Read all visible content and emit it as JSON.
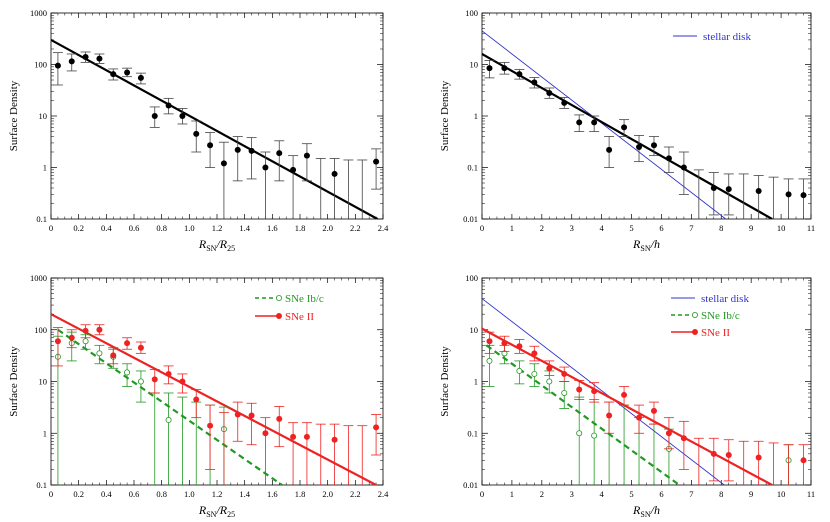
{
  "chart_data": [
    {
      "type": "scatter",
      "panel": "top-left",
      "title": "",
      "xlabel": {
        "main": "R",
        "sub1": "SN",
        "mid": "/R",
        "sub2": "25"
      },
      "ylabel": "Surface Density",
      "y_scale": "log",
      "xlim": [
        0,
        2.4
      ],
      "ylim": [
        0.1,
        1000
      ],
      "x_ticks": [
        "0",
        "0.2",
        "0.4",
        "0.6",
        "0.8",
        "1.0",
        "1.2",
        "1.4",
        "1.6",
        "1.8",
        "2.0",
        "2.2",
        "2.4"
      ],
      "x_tick_values": [
        0,
        0.2,
        0.4,
        0.6,
        0.8,
        1.0,
        1.2,
        1.4,
        1.6,
        1.8,
        2.0,
        2.2,
        2.4
      ],
      "y_ticks": [
        "0.1",
        "1",
        "10",
        "100",
        "1000"
      ],
      "y_tick_values": [
        0.1,
        1,
        10,
        100,
        1000
      ],
      "legend": [],
      "series": [
        {
          "color": "#000000",
          "marker": "filled-circle",
          "points": [
            [
              0.05,
              95,
              40,
              170
            ],
            [
              0.15,
              115,
              75,
              160
            ],
            [
              0.25,
              140,
              110,
              175
            ],
            [
              0.35,
              130,
              105,
              160
            ],
            [
              0.45,
              65,
              50,
              82
            ],
            [
              0.55,
              70,
              58,
              85
            ],
            [
              0.65,
              55,
              42,
              68
            ],
            [
              0.75,
              10,
              6,
              15
            ],
            [
              0.85,
              16,
              11,
              22
            ],
            [
              0.95,
              10,
              7,
              14
            ],
            [
              1.05,
              4.5,
              2,
              8
            ],
            [
              1.15,
              2.7,
              1,
              4.8
            ],
            [
              1.25,
              1.2,
              0.1,
              3.1
            ],
            [
              1.35,
              2.2,
              0.55,
              4
            ],
            [
              1.45,
              2.1,
              0.6,
              3.8
            ],
            [
              1.55,
              1,
              0.1,
              2
            ],
            [
              1.65,
              1.9,
              0.55,
              3.3
            ],
            [
              1.75,
              0.9,
              0.1,
              1.7
            ],
            [
              1.85,
              1.7,
              0.55,
              2.9
            ],
            [
              1.95,
              0,
              0.1,
              1.5
            ],
            [
              2.05,
              0.75,
              0.1,
              1.5
            ],
            [
              2.15,
              0,
              0.1,
              1.4
            ],
            [
              2.25,
              0,
              0.1,
              1.4
            ],
            [
              2.35,
              1.3,
              0.38,
              2.3
            ]
          ]
        }
      ],
      "lines": [
        {
          "color": "#000000",
          "width": 2.2,
          "dash": "",
          "from": [
            0,
            300
          ],
          "to": [
            2.36,
            0.1
          ]
        }
      ]
    },
    {
      "type": "scatter",
      "panel": "top-right",
      "title": "",
      "xlabel": {
        "main": "R",
        "sub1": "SN",
        "mid": "/h",
        "sub2": ""
      },
      "ylabel": "Surface Density",
      "y_scale": "log",
      "xlim": [
        0,
        11
      ],
      "ylim": [
        0.01,
        100
      ],
      "x_ticks": [
        "0",
        "1",
        "2",
        "3",
        "4",
        "5",
        "6",
        "7",
        "8",
        "9",
        "10",
        "11"
      ],
      "x_tick_values": [
        0,
        1,
        2,
        3,
        4,
        5,
        6,
        7,
        8,
        9,
        10,
        11
      ],
      "y_ticks": [
        "0.01",
        "0.1",
        "1",
        "10",
        "100"
      ],
      "y_tick_values": [
        0.01,
        0.1,
        1,
        10,
        100
      ],
      "legend": [
        {
          "label": "stellar disk",
          "color": "#3333cc",
          "style": "line"
        }
      ],
      "series": [
        {
          "color": "#000000",
          "marker": "filled-circle",
          "points": [
            [
              0.25,
              8.5,
              5.5,
              12
            ],
            [
              0.75,
              8.5,
              6.5,
              11
            ],
            [
              1.25,
              6.5,
              5.2,
              8
            ],
            [
              1.75,
              4.5,
              3.5,
              5.6
            ],
            [
              2.25,
              2.8,
              2.2,
              3.5
            ],
            [
              2.75,
              1.8,
              1.4,
              2.3
            ],
            [
              3.25,
              0.75,
              0.5,
              1.05
            ],
            [
              3.75,
              0.75,
              0.5,
              1.0
            ],
            [
              4.25,
              0.22,
              0.1,
              0.4
            ],
            [
              4.75,
              0.6,
              0.4,
              0.85
            ],
            [
              5.25,
              0.25,
              0.13,
              0.42
            ],
            [
              5.75,
              0.27,
              0.17,
              0.4
            ],
            [
              6.25,
              0.15,
              0.08,
              0.25
            ],
            [
              6.75,
              0.1,
              0.03,
              0.2
            ],
            [
              7.25,
              0,
              0.01,
              0.09
            ],
            [
              7.75,
              0.04,
              0.012,
              0.08
            ],
            [
              8.25,
              0.038,
              0.012,
              0.075
            ],
            [
              8.75,
              0,
              0.01,
              0.075
            ],
            [
              9.25,
              0.035,
              0.01,
              0.07
            ],
            [
              9.75,
              0,
              0.01,
              0.065
            ],
            [
              10.25,
              0.03,
              0.01,
              0.06
            ],
            [
              10.75,
              0.029,
              0.01,
              0.06
            ]
          ]
        }
      ],
      "lines": [
        {
          "color": "#3333cc",
          "width": 0.9,
          "dash": "",
          "from": [
            0,
            45
          ],
          "to": [
            8.15,
            0.01
          ]
        },
        {
          "color": "#000000",
          "width": 2.2,
          "dash": "",
          "from": [
            0,
            16
          ],
          "to": [
            9.7,
            0.01
          ]
        }
      ]
    },
    {
      "type": "scatter",
      "panel": "bottom-left",
      "title": "",
      "xlabel": {
        "main": "R",
        "sub1": "SN",
        "mid": "/R",
        "sub2": "25"
      },
      "ylabel": "Surface Density",
      "y_scale": "log",
      "xlim": [
        0,
        2.4
      ],
      "ylim": [
        0.1,
        1000
      ],
      "x_ticks": [
        "0",
        "0.2",
        "0.4",
        "0.6",
        "0.8",
        "1.0",
        "1.2",
        "1.4",
        "1.6",
        "1.8",
        "2.0",
        "2.2",
        "2.4"
      ],
      "x_tick_values": [
        0,
        0.2,
        0.4,
        0.6,
        0.8,
        1.0,
        1.2,
        1.4,
        1.6,
        1.8,
        2.0,
        2.2,
        2.4
      ],
      "y_ticks": [
        "0.1",
        "1",
        "10",
        "100",
        "1000"
      ],
      "y_tick_values": [
        0.1,
        1,
        10,
        100,
        1000
      ],
      "legend": [
        {
          "label": "SNe Ib/c",
          "color": "#229922",
          "style": "dashed",
          "marker": "open"
        },
        {
          "label": "SNe II",
          "color": "#ee2222",
          "style": "solid",
          "marker": "filled"
        }
      ],
      "series": [
        {
          "name": "SNe Ib/c",
          "color": "#229922",
          "marker": "open-circle",
          "points": [
            [
              0.05,
              30,
              0.1,
              75
            ],
            [
              0.15,
              55,
              25,
              90
            ],
            [
              0.25,
              60,
              42,
              80
            ],
            [
              0.35,
              35,
              22,
              50
            ],
            [
              0.45,
              30,
              18,
              42
            ],
            [
              0.55,
              15,
              8,
              22
            ],
            [
              0.65,
              10,
              4,
              16
            ],
            [
              0.75,
              0,
              0.1,
              6
            ],
            [
              0.85,
              1.8,
              0.1,
              6
            ],
            [
              0.95,
              0,
              0.1,
              5
            ],
            [
              1.05,
              0,
              0.1,
              4
            ],
            [
              1.15,
              0,
              0.1,
              3.5
            ],
            [
              1.25,
              1.2,
              0.1,
              3.2
            ]
          ]
        },
        {
          "name": "SNe II",
          "color": "#ee2222",
          "marker": "filled-circle",
          "points": [
            [
              0.05,
              60,
              20,
              110
            ],
            [
              0.15,
              70,
              45,
              100
            ],
            [
              0.25,
              95,
              70,
              125
            ],
            [
              0.35,
              100,
              80,
              125
            ],
            [
              0.45,
              32,
              22,
              45
            ],
            [
              0.55,
              55,
              42,
              70
            ],
            [
              0.65,
              45,
              35,
              58
            ],
            [
              0.75,
              11,
              6,
              17
            ],
            [
              0.85,
              14,
              9,
              20
            ],
            [
              0.95,
              10,
              6,
              14
            ],
            [
              1.05,
              4.5,
              2,
              7
            ],
            [
              1.15,
              1.4,
              0.2,
              3.5
            ],
            [
              1.25,
              0,
              0.1,
              2.5
            ],
            [
              1.35,
              2.3,
              0.7,
              4
            ],
            [
              1.45,
              2.2,
              0.6,
              3.8
            ],
            [
              1.55,
              1,
              0.1,
              2
            ],
            [
              1.65,
              1.9,
              0.55,
              3.3
            ],
            [
              1.75,
              0.85,
              0.1,
              1.6
            ],
            [
              1.85,
              0.85,
              0.1,
              1.6
            ],
            [
              1.95,
              0,
              0.1,
              1.5
            ],
            [
              2.05,
              0.75,
              0.1,
              1.5
            ],
            [
              2.15,
              0,
              0.1,
              1.4
            ],
            [
              2.25,
              0,
              0.1,
              1.4
            ],
            [
              2.35,
              1.3,
              0.38,
              2.3
            ]
          ]
        }
      ],
      "lines": [
        {
          "color": "#229922",
          "width": 2.2,
          "dash": "6,4",
          "from": [
            0.05,
            100
          ],
          "to": [
            1.67,
            0.1
          ]
        },
        {
          "color": "#ee2222",
          "width": 2.2,
          "dash": "",
          "from": [
            0,
            200
          ],
          "to": [
            2.35,
            0.1
          ]
        }
      ]
    },
    {
      "type": "scatter",
      "panel": "bottom-right",
      "title": "",
      "xlabel": {
        "main": "R",
        "sub1": "SN",
        "mid": "/h",
        "sub2": ""
      },
      "ylabel": "Surface Density",
      "y_scale": "log",
      "xlim": [
        0,
        11
      ],
      "ylim": [
        0.01,
        100
      ],
      "x_ticks": [
        "0",
        "1",
        "2",
        "3",
        "4",
        "5",
        "6",
        "7",
        "8",
        "9",
        "10",
        "11"
      ],
      "x_tick_values": [
        0,
        1,
        2,
        3,
        4,
        5,
        6,
        7,
        8,
        9,
        10,
        11
      ],
      "y_ticks": [
        "0.01",
        "0.1",
        "1",
        "10",
        "100"
      ],
      "y_tick_values": [
        0.01,
        0.1,
        1,
        10,
        100
      ],
      "legend": [
        {
          "label": "stellar disk",
          "color": "#3333cc",
          "style": "line"
        },
        {
          "label": "SNe Ib/c",
          "color": "#229922",
          "style": "dashed",
          "marker": "open"
        },
        {
          "label": "SNe II",
          "color": "#ee2222",
          "style": "solid",
          "marker": "filled"
        }
      ],
      "series": [
        {
          "name": "SNe Ib/c",
          "color": "#229922",
          "marker": "open-circle",
          "points": [
            [
              0.25,
              2.5,
              0.8,
              5
            ],
            [
              0.75,
              3.5,
              2.2,
              5
            ],
            [
              1.25,
              1.6,
              0.9,
              2.5
            ],
            [
              1.75,
              1.4,
              0.8,
              2.2
            ],
            [
              2.25,
              1.0,
              0.6,
              1.6
            ],
            [
              2.75,
              0.6,
              0.3,
              1.0
            ],
            [
              3.25,
              0.1,
              0.01,
              0.5
            ],
            [
              3.75,
              0.09,
              0.01,
              0.45
            ],
            [
              4.25,
              0,
              0.01,
              0.4
            ],
            [
              4.75,
              0,
              0.01,
              0.35
            ],
            [
              5.25,
              0,
              0.01,
              0.2
            ],
            [
              5.75,
              0,
              0.01,
              0.15
            ],
            [
              6.25,
              0.05,
              0.01,
              0.12
            ],
            [
              10.25,
              0.03,
              0.01,
              0.06
            ]
          ]
        },
        {
          "name": "SNe II",
          "color": "#ee2222",
          "marker": "filled-circle",
          "points": [
            [
              0.25,
              6,
              3.5,
              9
            ],
            [
              0.75,
              5.5,
              3.8,
              7.5
            ],
            [
              1.25,
              4.8,
              3.5,
              6.5
            ],
            [
              1.75,
              3.5,
              2.5,
              4.8
            ],
            [
              2.25,
              1.8,
              1.3,
              2.5
            ],
            [
              2.75,
              1.4,
              1,
              1.9
            ],
            [
              3.25,
              0.7,
              0.45,
              1.05
            ],
            [
              3.75,
              0.65,
              0.4,
              0.95
            ],
            [
              4.25,
              0.22,
              0.1,
              0.4
            ],
            [
              4.75,
              0.55,
              0.35,
              0.8
            ],
            [
              5.25,
              0.2,
              0.1,
              0.35
            ],
            [
              5.75,
              0.27,
              0.15,
              0.4
            ],
            [
              6.25,
              0.1,
              0.05,
              0.2
            ],
            [
              6.75,
              0.08,
              0.02,
              0.17
            ],
            [
              7.25,
              0,
              0.01,
              0.08
            ],
            [
              7.75,
              0.04,
              0.012,
              0.08
            ],
            [
              8.25,
              0.038,
              0.012,
              0.075
            ],
            [
              8.75,
              0,
              0.01,
              0.07
            ],
            [
              9.25,
              0.034,
              0.01,
              0.07
            ],
            [
              9.75,
              0,
              0.01,
              0.065
            ],
            [
              10.25,
              0,
              0.01,
              0.06
            ],
            [
              10.75,
              0.03,
              0.01,
              0.06
            ]
          ]
        }
      ],
      "lines": [
        {
          "color": "#3333cc",
          "width": 0.9,
          "dash": "",
          "from": [
            0,
            40
          ],
          "to": [
            8.1,
            0.01
          ]
        },
        {
          "color": "#229922",
          "width": 2.2,
          "dash": "6,4",
          "from": [
            0.15,
            5
          ],
          "to": [
            6.6,
            0.01
          ]
        },
        {
          "color": "#ee2222",
          "width": 2.2,
          "dash": "",
          "from": [
            0,
            10.5
          ],
          "to": [
            9.7,
            0.01
          ]
        }
      ]
    }
  ]
}
